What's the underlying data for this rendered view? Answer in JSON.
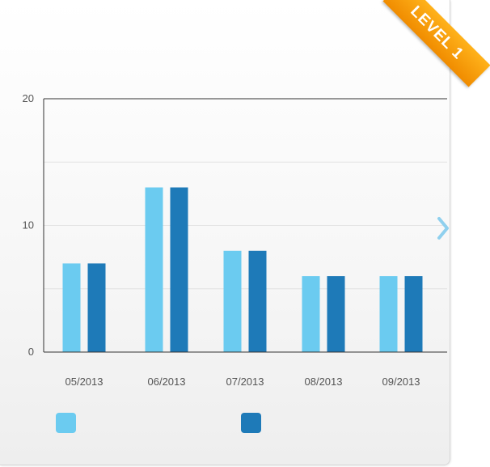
{
  "badge": {
    "label": "LEVEL 1"
  },
  "chart_data": {
    "type": "bar",
    "categories": [
      "05/2013",
      "06/2013",
      "07/2013",
      "08/2013",
      "09/2013"
    ],
    "series": [
      {
        "values": [
          7,
          13,
          8,
          6,
          6
        ],
        "color": "#6bcbf0"
      },
      {
        "values": [
          7,
          13,
          8,
          6,
          6
        ],
        "color": "#1e7ab8"
      }
    ],
    "ylim": [
      0,
      20
    ],
    "yticks": [
      "0",
      "10",
      "20"
    ],
    "grid": true,
    "legend_position": "bottom-left"
  },
  "nav": {
    "next_icon": "chevron-right-icon"
  }
}
